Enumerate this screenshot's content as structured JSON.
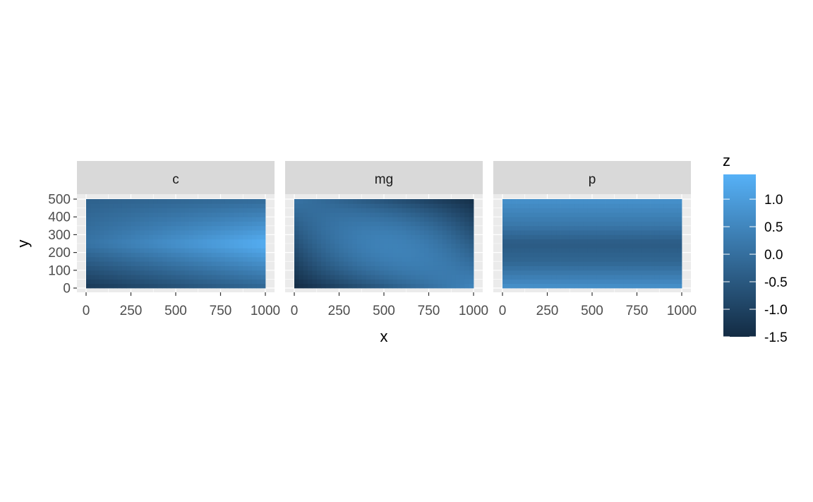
{
  "chart_data": {
    "type": "heatmap",
    "xlabel": "x",
    "ylabel": "y",
    "xlim": [
      0,
      1000
    ],
    "ylim": [
      0,
      500
    ],
    "x_ticks": [
      "0",
      "250",
      "500",
      "750",
      "1000"
    ],
    "y_ticks": [
      "0",
      "100",
      "200",
      "300",
      "400",
      "500"
    ],
    "legend": {
      "title": "z",
      "placement": "right",
      "range": [
        -1.5,
        1.45
      ],
      "ticks": [
        "1.0",
        "0.5",
        "0.0",
        "-0.5",
        "-1.0",
        "-1.5"
      ],
      "color_low": "#132B43",
      "color_high": "#56B1F7"
    },
    "panels": [
      {
        "label": "c",
        "z_corners": {
          "bottom_left": -1.2,
          "bottom_right": -0.2,
          "top_left": -0.3,
          "top_right": -0.1,
          "middle_left": 0.1,
          "middle_right": 1.4
        }
      },
      {
        "label": "mg",
        "z_corners": {
          "bottom_left": -1.5,
          "bottom_right": 0.5,
          "top_left": 0.1,
          "top_right": -1.4,
          "center": 0.4
        }
      },
      {
        "label": "p",
        "z_rows": {
          "bottom": 0.75,
          "lower_middle": -0.2,
          "middle": -0.45,
          "upper_middle": 0.2,
          "top": 0.75
        }
      }
    ]
  }
}
